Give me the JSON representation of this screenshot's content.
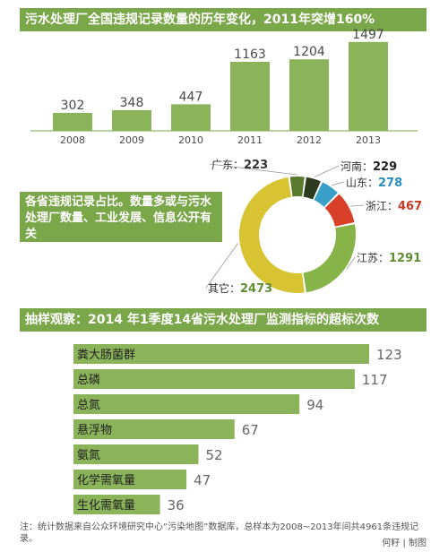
{
  "colors": {
    "accent": "#7aa74a",
    "bar": "#8bb35a",
    "donut_jiangsu": "#86b449",
    "donut_others": "#d8c333",
    "donut_guangdong": "#5a7a2e",
    "donut_henan": "#2c3a1e",
    "donut_shandong": "#3aa0c8",
    "donut_zhejiang": "#d9402a"
  },
  "banner1": {
    "title": "污水处理厂全国违规记录数量的历年变化，2011年突增160%"
  },
  "callout": {
    "text": "各省违规记录占比。数量多或与污水处理厂数量、工业发展、信息公开有关"
  },
  "banner2": {
    "title": "抽样观察：2014 年1季度14省污水处理厂监测指标的超标次数"
  },
  "footnote": "注：统计数据来自公众环境研究中心“污染地图”数据库，总样本为2008~2013年间共4961条违规记录。",
  "credit": "何籽 | 制图",
  "chart_data": [
    {
      "type": "bar",
      "categories": [
        "2008",
        "2009",
        "2010",
        "2011",
        "2012",
        "2013"
      ],
      "values": [
        302,
        348,
        447,
        1163,
        1204,
        1497
      ],
      "ylim": [
        0,
        1600
      ]
    },
    {
      "type": "pie",
      "slices": [
        {
          "label": "江苏",
          "value": 1291
        },
        {
          "label": "其它",
          "value": 2473
        },
        {
          "label": "广东",
          "value": 223
        },
        {
          "label": "河南",
          "value": 229
        },
        {
          "label": "山东",
          "value": 278
        },
        {
          "label": "浙江",
          "value": 467
        }
      ]
    },
    {
      "type": "bar",
      "orientation": "horizontal",
      "categories": [
        "粪大肠菌群",
        "总磷",
        "总氮",
        "悬浮物",
        "氨氮",
        "化学需氧量",
        "生化需氧量"
      ],
      "values": [
        123,
        117,
        94,
        67,
        52,
        47,
        36
      ]
    }
  ]
}
